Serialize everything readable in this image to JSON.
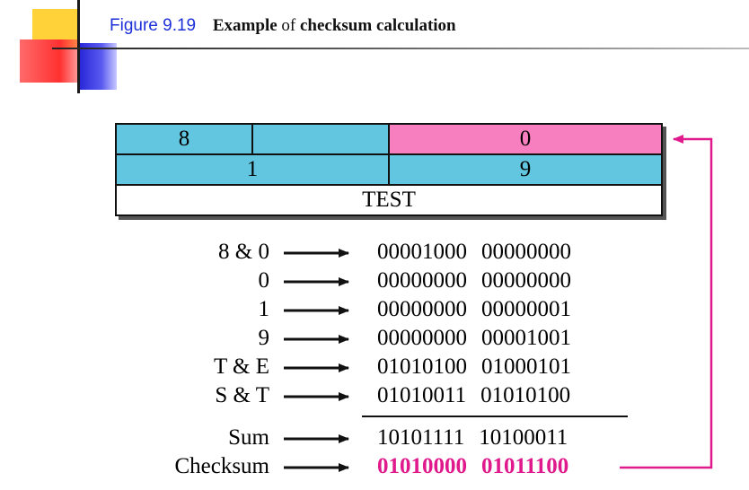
{
  "slide": {
    "figure_number": "Figure 9.19",
    "caption_word_1": "Example",
    "caption_word_2": "of",
    "caption_word_3": "checksum calculation"
  },
  "header_fields": {
    "row1_left": "8",
    "row1_mid": "",
    "row1_right": "0",
    "row2_left": "1",
    "row2_right": "9",
    "row3": "TEST"
  },
  "rows": [
    {
      "label": "8 & 0",
      "word1": "00001000",
      "word2": "00000000"
    },
    {
      "label": "0",
      "word1": "00000000",
      "word2": "00000000"
    },
    {
      "label": "1",
      "word1": "00000000",
      "word2": "00000001"
    },
    {
      "label": "9",
      "word1": "00000000",
      "word2": "00001001"
    },
    {
      "label": "T & E",
      "word1": "01010100",
      "word2": "01000101"
    },
    {
      "label": "S & T",
      "word1": "01010011",
      "word2": "01010100"
    }
  ],
  "sum": {
    "label": "Sum",
    "word1": "10101111",
    "word2": "10100011"
  },
  "checksum": {
    "label": "Checksum",
    "word1": "01010000",
    "word2": "01011100"
  },
  "colors": {
    "cyan": "#62c6e0",
    "pink": "#f77fc0",
    "checksum": "#e0198c",
    "title": "#1d2fd8"
  }
}
